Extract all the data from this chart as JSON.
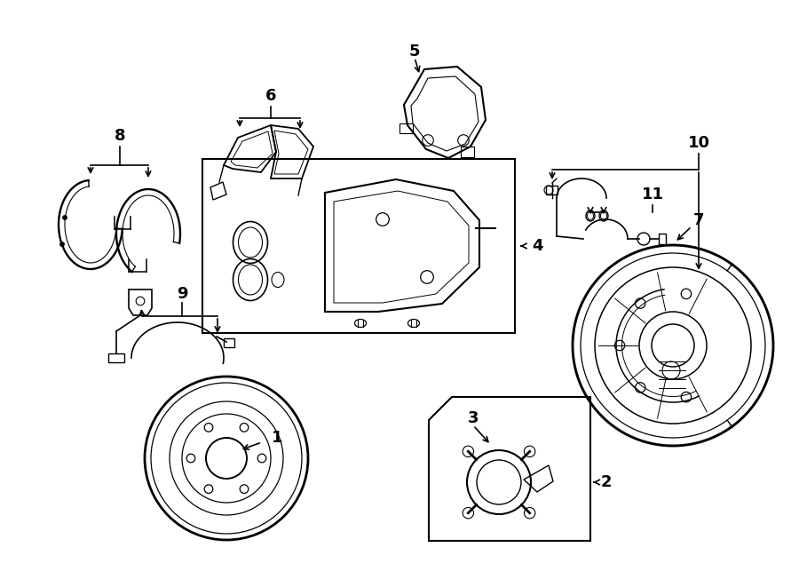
{
  "bg_color": "#ffffff",
  "line_color": "#000000",
  "figsize": [
    9.0,
    6.61
  ],
  "dpi": 100,
  "xlim": [
    0,
    9.0
  ],
  "ylim": [
    0,
    6.61
  ]
}
